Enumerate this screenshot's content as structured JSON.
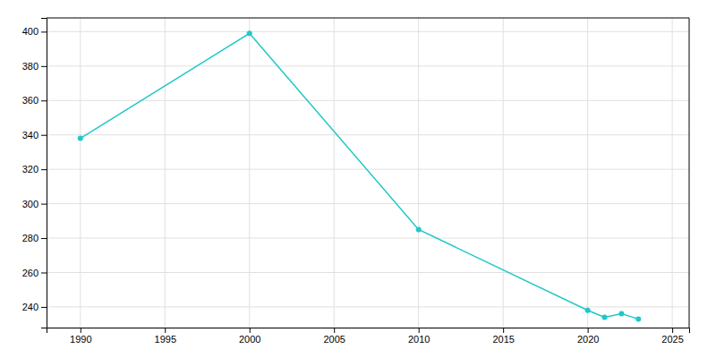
{
  "chart_data": {
    "type": "line",
    "x": [
      1990,
      2000,
      2010,
      2020,
      2021,
      2022,
      2023
    ],
    "values": [
      338,
      399,
      285,
      238,
      234,
      236,
      233
    ],
    "color": "#20C8C8",
    "marker": "circle",
    "xlim": [
      1988,
      2026
    ],
    "ylim": [
      228,
      408
    ],
    "xticks": [
      1990,
      1995,
      2000,
      2005,
      2010,
      2015,
      2020,
      2025
    ],
    "yticks": [
      240,
      260,
      280,
      300,
      320,
      340,
      360,
      380,
      400
    ],
    "grid": true
  }
}
